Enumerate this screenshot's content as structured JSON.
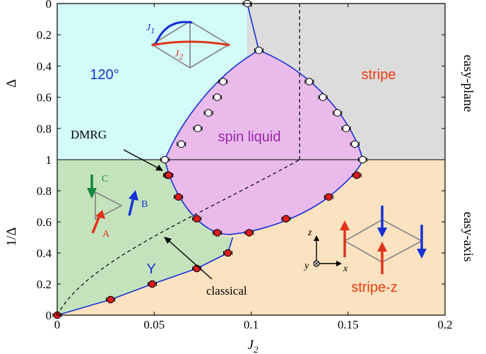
{
  "chart_data": {
    "type": "scatter",
    "xlabel": "J",
    "xlabel_sub": "2",
    "ylabel_top": "Δ",
    "ylabel_bottom": "1/Δ",
    "xlim": [
      0,
      0.2
    ],
    "x_ticks": [
      0,
      0.05,
      0.1,
      0.15,
      0.2
    ],
    "x_tick_labels": [
      "0",
      "0.05",
      "0.1",
      "0.15",
      "0.2"
    ],
    "top_ticks": [
      0,
      0.2,
      0.4,
      0.6,
      0.8,
      1
    ],
    "top_tick_labels": [
      "0",
      "0.2",
      "0.4",
      "0.6",
      "0.8",
      "1"
    ],
    "bottom_ticks": [
      0.8,
      0.6,
      0.4,
      0.2,
      0
    ],
    "bottom_tick_labels": [
      "0.8",
      "0.6",
      "0.4",
      "0.2",
      "0"
    ],
    "side_labels": {
      "top": "easy-plane",
      "bottom": "easy-axis"
    },
    "regions": {
      "r120": {
        "label": "120°",
        "color": "#d3fbfa",
        "text_color": "#1531d8"
      },
      "stripe": {
        "label": "stripe",
        "color": "#dcdcdc",
        "text_color": "#f03a10"
      },
      "spin_liquid": {
        "label": "spin liquid",
        "color": "#e9baea",
        "text_color": "#9a2aa7"
      },
      "Y": {
        "label": "Y",
        "color": "#c4e3bc",
        "text_color": "#1531d8"
      },
      "stripe_z": {
        "label": "stripe-z",
        "color": "#fbe2c0",
        "text_color": "#f03a10"
      }
    },
    "annotations": {
      "dmrg": "DMRG",
      "classical": "classical"
    },
    "series": [
      {
        "name": "easy-plane",
        "marker": "open-circle",
        "points_delta": [
          [
            0.098,
            0
          ],
          [
            0.104,
            0.3
          ],
          [
            0.0855,
            0.5
          ],
          [
            0.0825,
            0.6
          ],
          [
            0.078,
            0.7
          ],
          [
            0.0725,
            0.8
          ],
          [
            0.064,
            0.9
          ],
          [
            0.0555,
            1.0
          ],
          [
            0.13,
            0.5
          ],
          [
            0.137,
            0.6
          ],
          [
            0.1445,
            0.7
          ],
          [
            0.149,
            0.8
          ],
          [
            0.1535,
            0.9
          ],
          [
            0.1575,
            1.0
          ]
        ]
      },
      {
        "name": "easy-axis",
        "marker": "red-circle",
        "points_inv_delta": [
          [
            0.057,
            0.9
          ],
          [
            0.0575,
            0.9
          ],
          [
            0.0625,
            0.76
          ],
          [
            0.072,
            0.62
          ],
          [
            0.0825,
            0.53
          ],
          [
            0.099,
            0.53
          ],
          [
            0.118,
            0.62
          ],
          [
            0.14,
            0.76
          ],
          [
            0.1545,
            0.9
          ],
          [
            0.088,
            0.4
          ],
          [
            0.072,
            0.3
          ],
          [
            0.049,
            0.2
          ],
          [
            0.0275,
            0.1
          ],
          [
            0,
            0
          ]
        ]
      }
    ],
    "legend_insets": {
      "coupling": {
        "j1": "J",
        "j1_sub": "1",
        "j2": "J",
        "j2_sub": "2"
      },
      "triangle": {
        "a": "A",
        "b": "B",
        "c": "C"
      },
      "axes": {
        "z": "z",
        "y": "y",
        "x": "x"
      }
    }
  }
}
